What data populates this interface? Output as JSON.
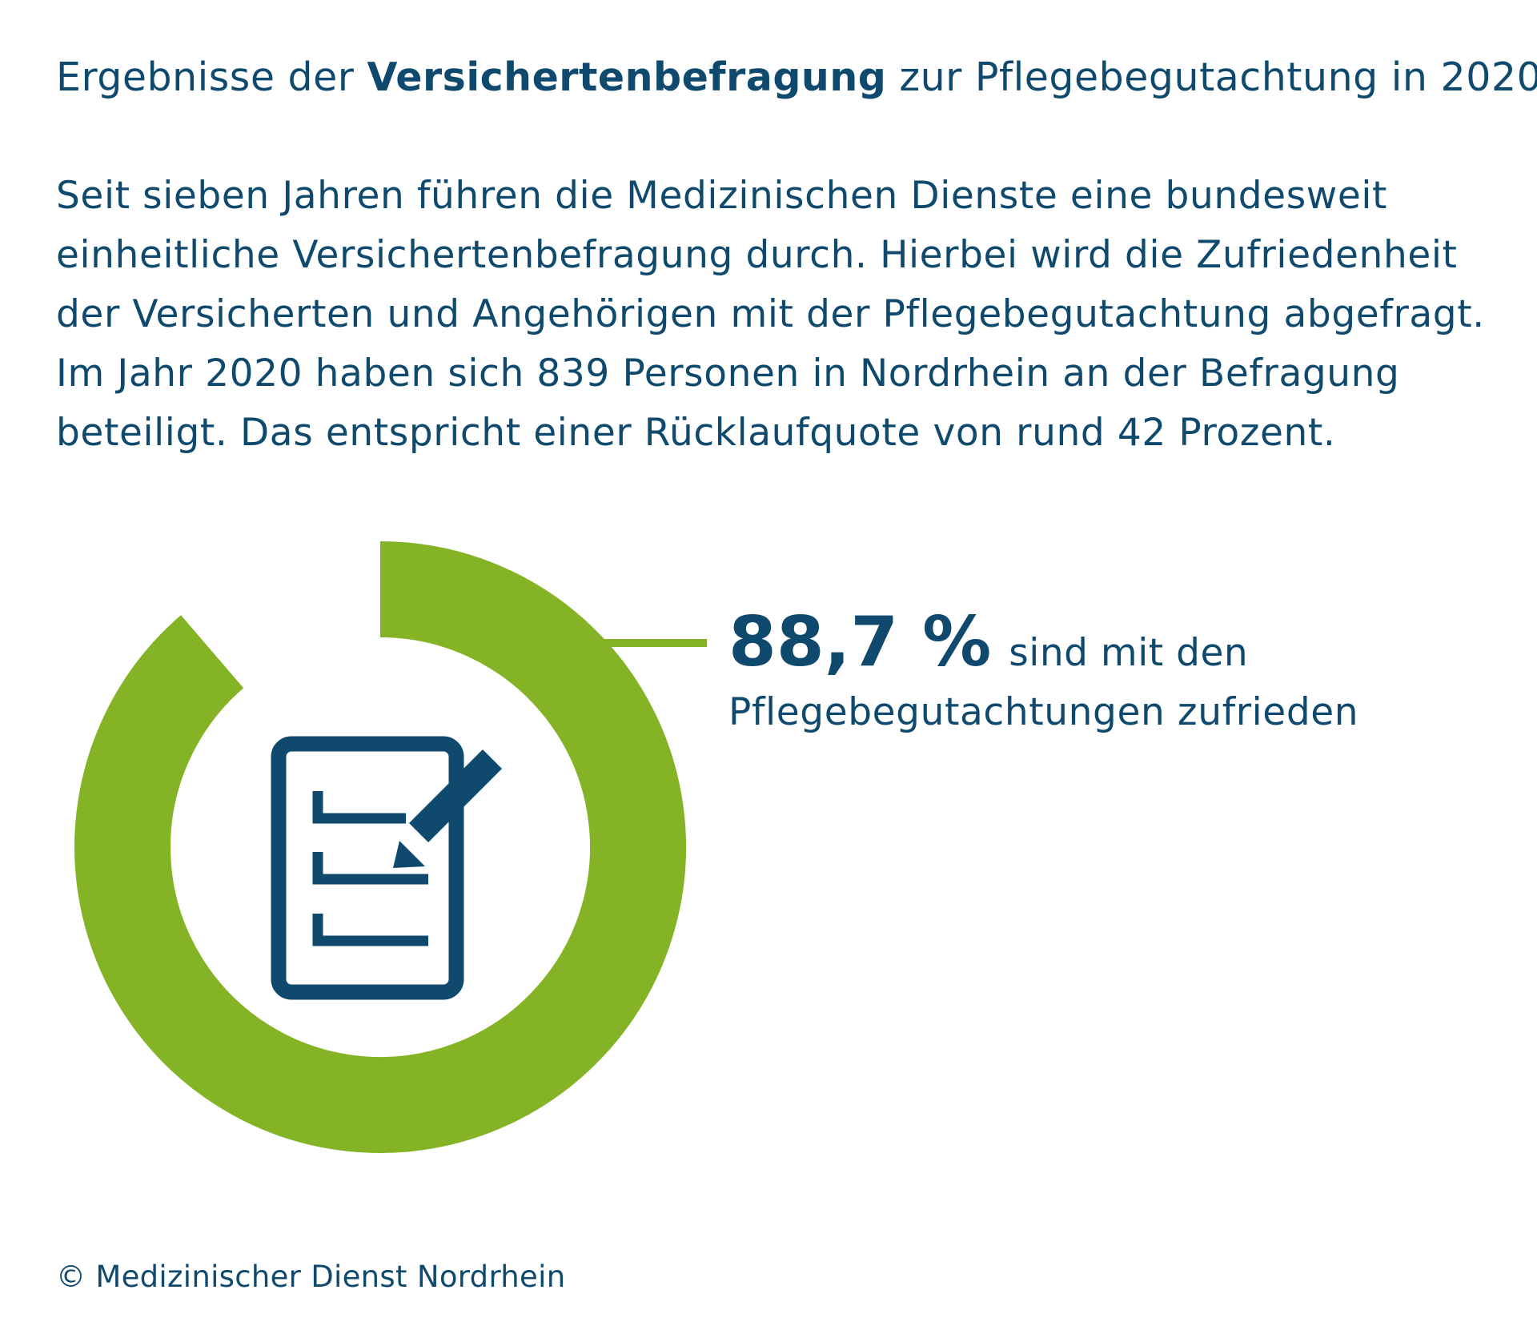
{
  "title": {
    "prefix": "Ergebnisse der ",
    "bold": "Versichertenbefragung",
    "suffix": " zur Pflegebegutachtung in 2020"
  },
  "intro": {
    "lines": [
      "Seit sieben Jahren führen die Medizinischen Dienste eine bundesweit",
      "einheitliche Versichertenbefragung durch. Hierbei wird die Zufriedenheit",
      "der Versicherten und Angehörigen mit der Pflegebegutachtung abgefragt.",
      "Im Jahr 2020 haben sich 839 Personen in Nordrhein an der Befragung",
      "beteiligt. Das entspricht einer Rücklaufquote von rund 42 Prozent."
    ]
  },
  "stat": {
    "value_label": "88,7 %",
    "text_line1": "sind mit den",
    "text_line2": "Pflegebegutachtungen zufrieden"
  },
  "footer": "© Medizinischer Dienst Nordrhein",
  "icon": "document-with-pencil-icon",
  "colors": {
    "text": "#0f4a6e",
    "ring": "#84b425",
    "icon": "#0f4a6e",
    "background": "#ffffff"
  },
  "chart_data": {
    "type": "pie",
    "variant": "donut",
    "title": "",
    "slices": [
      {
        "label": "sind mit den Pflegebegutachtungen zufrieden",
        "value": 88.7
      },
      {
        "label": "",
        "value": 11.3
      }
    ],
    "value_label": "88,7 %"
  }
}
